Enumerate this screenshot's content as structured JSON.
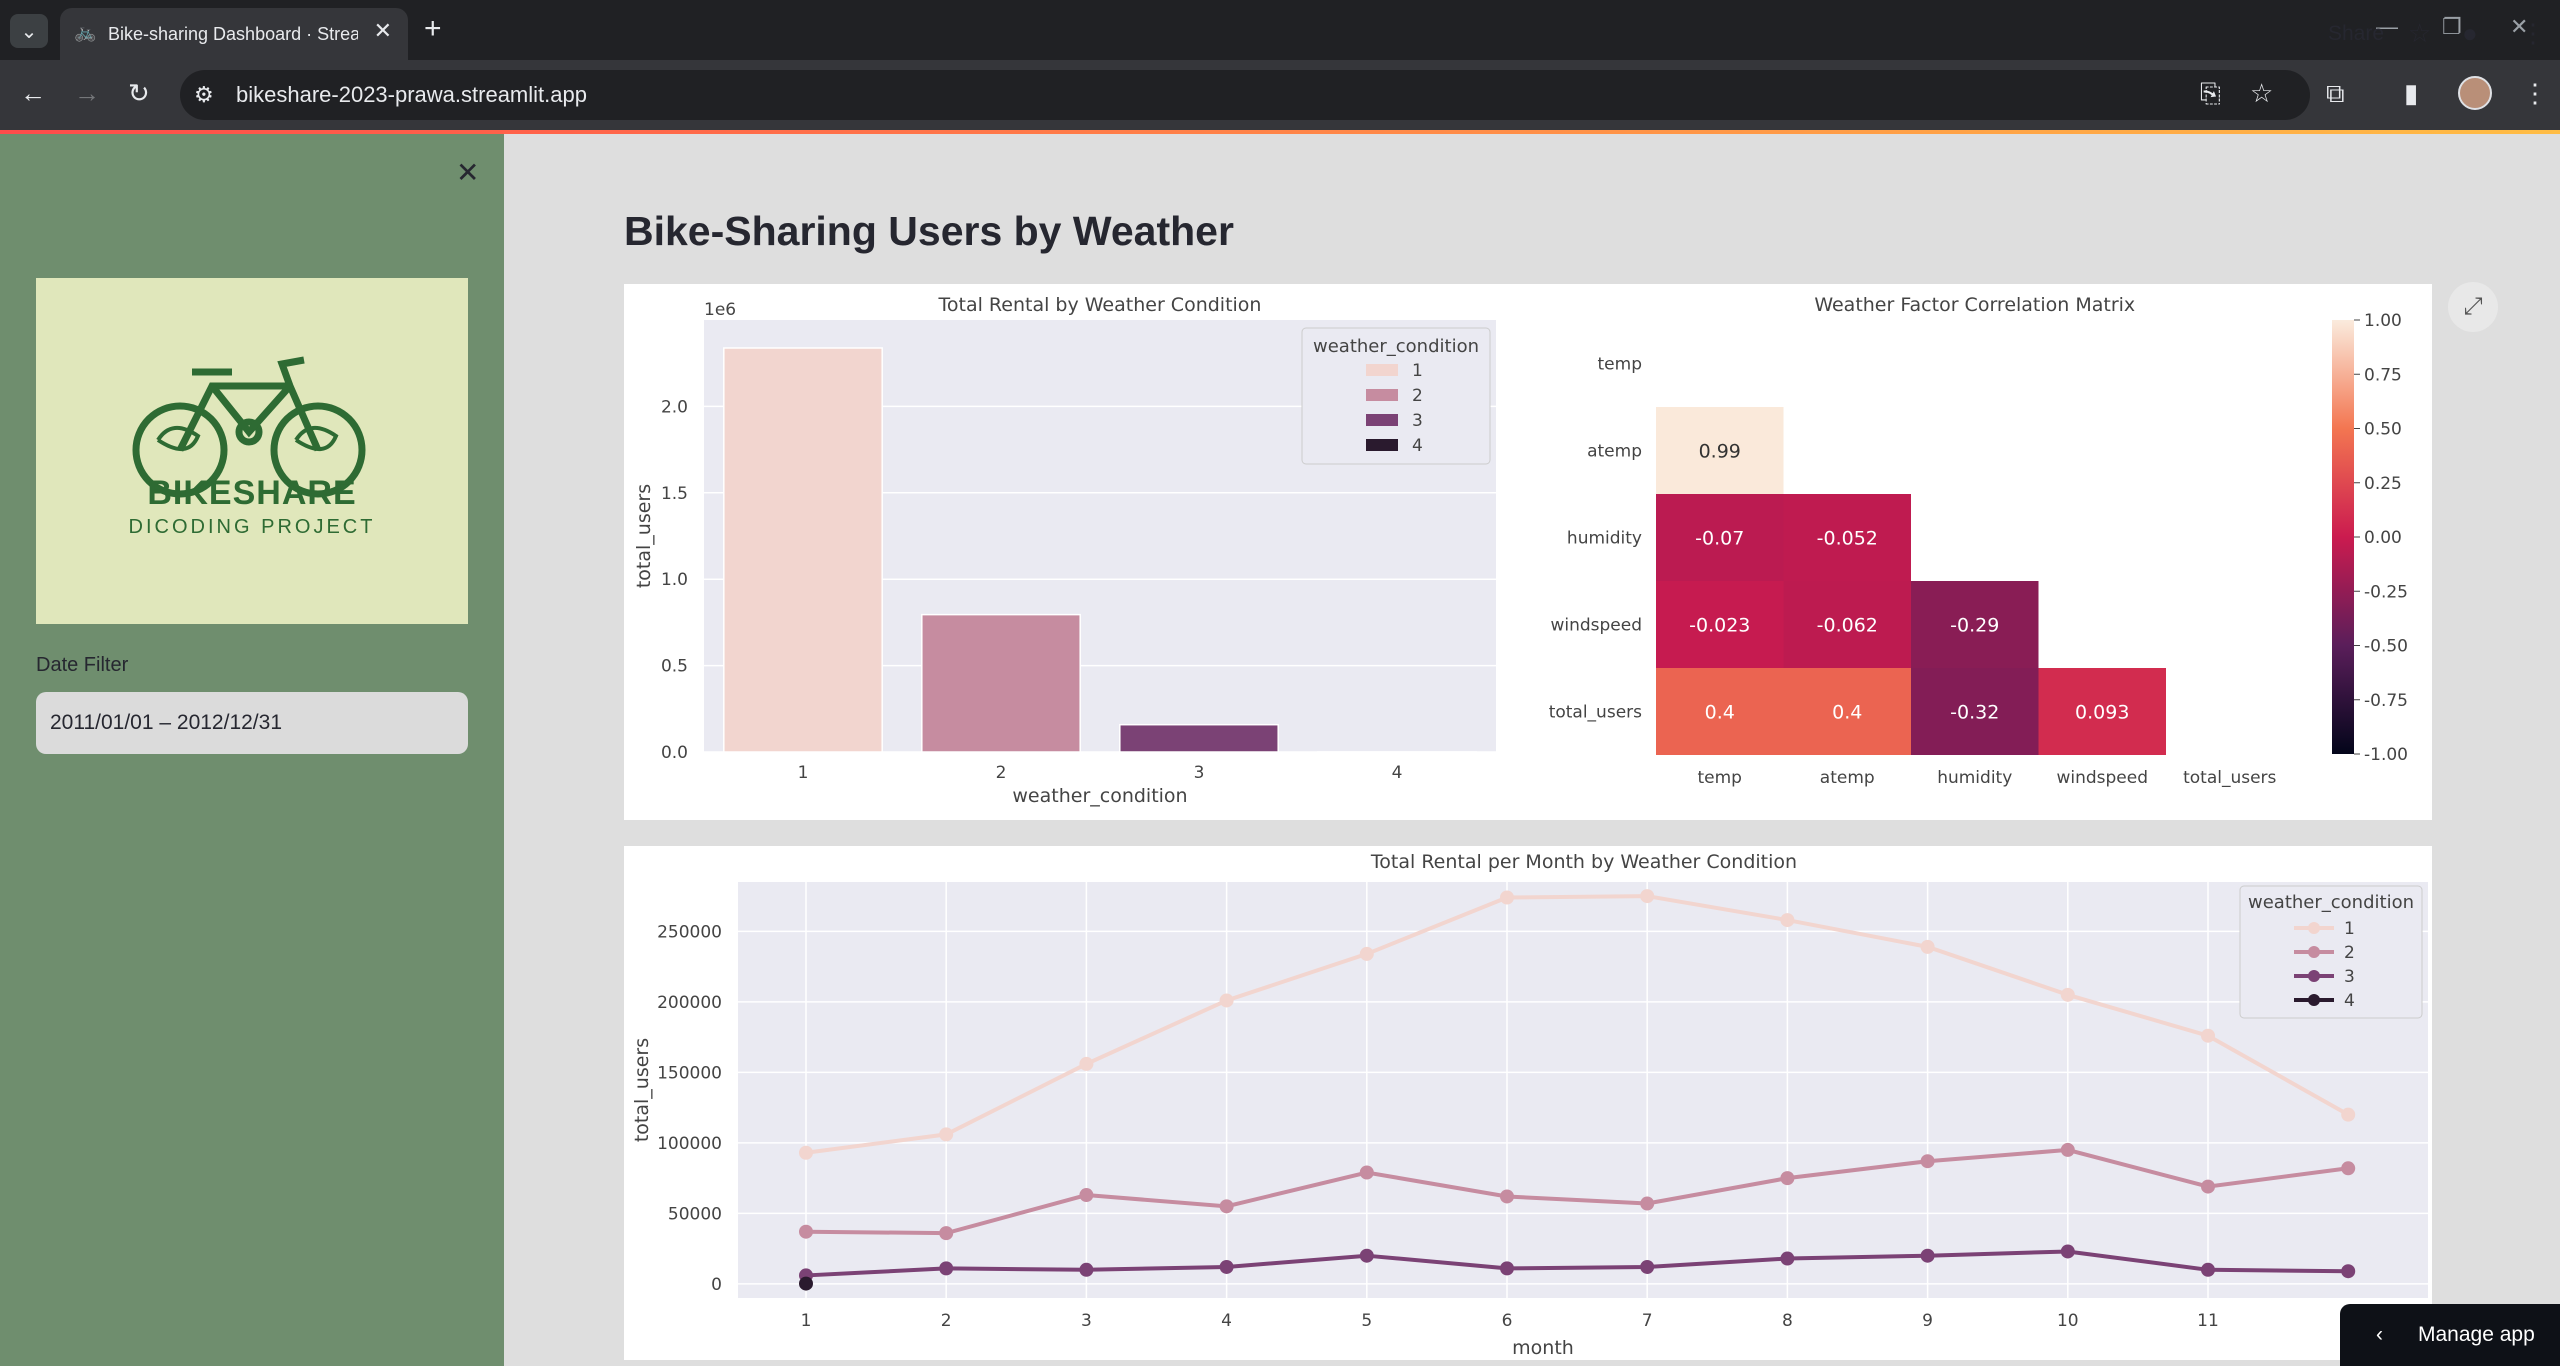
{
  "browser": {
    "tab_title": "Bike-sharing Dashboard · Streamlit",
    "url": "bikeshare-2023-prawa.streamlit.app"
  },
  "sidebar": {
    "logo_title": "BIKESHARE",
    "logo_subtitle": "DICODING PROJECT",
    "date_filter_label": "Date Filter",
    "date_filter_value": "2011/01/01 – 2012/12/31"
  },
  "header": {
    "share_label": "Share"
  },
  "page": {
    "title": "Bike-Sharing Users by Weather"
  },
  "manage_app_label": "Manage app",
  "colors": {
    "c1": "#f2d5cf",
    "c2": "#c68ca0",
    "c3": "#7b4275",
    "c4": "#2a1a2e"
  },
  "chart_data": [
    {
      "type": "bar",
      "title": "Total Rental by Weather Condition",
      "xlabel": "weather_condition",
      "ylabel": "total_users",
      "offset_label": "1e6",
      "categories": [
        "1",
        "2",
        "3",
        "4"
      ],
      "values": [
        2338000,
        795000,
        158000,
        223
      ],
      "ylim": [
        0,
        2500000
      ],
      "yticks": [
        "0.0",
        "0.5",
        "1.0",
        "1.5",
        "2.0"
      ],
      "legend_title": "weather_condition",
      "legend": [
        "1",
        "2",
        "3",
        "4"
      ]
    },
    {
      "type": "heatmap",
      "title": "Weather Factor Correlation Matrix",
      "labels": [
        "temp",
        "atemp",
        "humidity",
        "windspeed",
        "total_users"
      ],
      "cells": [
        {
          "row": 1,
          "col": 0,
          "value": 0.99,
          "label": "0.99"
        },
        {
          "row": 2,
          "col": 0,
          "value": -0.07,
          "label": "-0.07"
        },
        {
          "row": 2,
          "col": 1,
          "value": -0.052,
          "label": "-0.052"
        },
        {
          "row": 3,
          "col": 0,
          "value": -0.023,
          "label": "-0.023"
        },
        {
          "row": 3,
          "col": 1,
          "value": -0.062,
          "label": "-0.062"
        },
        {
          "row": 3,
          "col": 2,
          "value": -0.29,
          "label": "-0.29"
        },
        {
          "row": 4,
          "col": 0,
          "value": 0.4,
          "label": "0.4"
        },
        {
          "row": 4,
          "col": 1,
          "value": 0.4,
          "label": "0.4"
        },
        {
          "row": 4,
          "col": 2,
          "value": -0.32,
          "label": "-0.32"
        },
        {
          "row": 4,
          "col": 3,
          "value": 0.093,
          "label": "0.093"
        }
      ],
      "colorbar_ticks": [
        "1.00",
        "0.75",
        "0.50",
        "0.25",
        "0.00",
        "-0.25",
        "-0.50",
        "-0.75",
        "-1.00"
      ],
      "vmin": -1,
      "vmax": 1
    },
    {
      "type": "line",
      "title": "Total Rental per Month by Weather Condition",
      "xlabel": "month",
      "ylabel": "total_users",
      "x": [
        1,
        2,
        3,
        4,
        5,
        6,
        7,
        8,
        9,
        10,
        11,
        12
      ],
      "xticks": [
        "1",
        "2",
        "3",
        "4",
        "5",
        "6",
        "7",
        "8",
        "9",
        "10",
        "11"
      ],
      "yticks": [
        "0",
        "50000",
        "100000",
        "150000",
        "200000",
        "250000"
      ],
      "ylim": [
        -10000,
        285000
      ],
      "legend_title": "weather_condition",
      "series": [
        {
          "name": "1",
          "x": [
            1,
            2,
            3,
            4,
            5,
            6,
            7,
            8,
            9,
            10,
            11,
            12
          ],
          "values": [
            93000,
            106000,
            156000,
            201000,
            234000,
            274000,
            275000,
            258000,
            239000,
            205000,
            176000,
            120000
          ]
        },
        {
          "name": "2",
          "x": [
            1,
            2,
            3,
            4,
            5,
            6,
            7,
            8,
            9,
            10,
            11,
            12
          ],
          "values": [
            37000,
            36000,
            63000,
            55000,
            79000,
            62000,
            57000,
            75000,
            87000,
            95000,
            69000,
            82000
          ]
        },
        {
          "name": "3",
          "x": [
            1,
            2,
            3,
            4,
            5,
            6,
            7,
            8,
            9,
            10,
            11,
            12
          ],
          "values": [
            6000,
            11000,
            10000,
            12000,
            20000,
            11000,
            12000,
            18000,
            20000,
            23000,
            10000,
            9000
          ]
        },
        {
          "name": "4",
          "x": [
            1
          ],
          "values": [
            223
          ]
        }
      ]
    }
  ]
}
